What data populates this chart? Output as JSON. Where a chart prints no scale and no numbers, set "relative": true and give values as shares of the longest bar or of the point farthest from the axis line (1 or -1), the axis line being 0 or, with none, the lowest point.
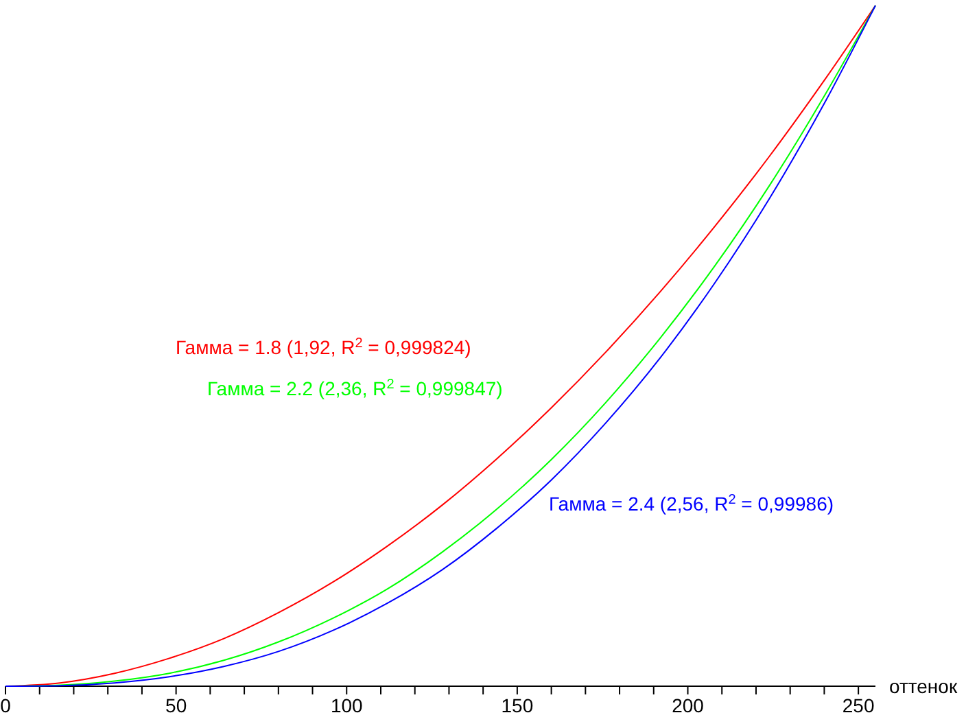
{
  "chart_data": {
    "type": "line",
    "relative": true,
    "xlabel": "оттенок",
    "xlim": [
      0,
      255
    ],
    "xticks": [
      0,
      {
        "value": 10,
        "label": null
      },
      {
        "value": 20,
        "label": null
      },
      {
        "value": 30,
        "label": null
      },
      {
        "value": 40,
        "label": null
      },
      50,
      {
        "value": 60,
        "label": null
      },
      {
        "value": 70,
        "label": null
      },
      {
        "value": 80,
        "label": null
      },
      {
        "value": 90,
        "label": null
      },
      100,
      {
        "value": 110,
        "label": null
      },
      {
        "value": 120,
        "label": null
      },
      {
        "value": 130,
        "label": null
      },
      {
        "value": 140,
        "label": null
      },
      150,
      {
        "value": 160,
        "label": null
      },
      {
        "value": 170,
        "label": null
      },
      {
        "value": 180,
        "label": null
      },
      {
        "value": 190,
        "label": null
      },
      200,
      {
        "value": 210,
        "label": null
      },
      {
        "value": 220,
        "label": null
      },
      {
        "value": 230,
        "label": null
      },
      {
        "value": 240,
        "label": null
      },
      250
    ],
    "x": [
      0,
      16,
      32,
      48,
      64,
      80,
      96,
      112,
      128,
      144,
      160,
      176,
      192,
      208,
      224,
      240,
      255
    ],
    "series": [
      {
        "color": "#ff0000",
        "values": [
          0,
          0.0049,
          0.019,
          0.041,
          0.07,
          0.108,
          0.153,
          0.206,
          0.266,
          0.334,
          0.409,
          0.491,
          0.58,
          0.676,
          0.779,
          0.89,
          1
        ]
      },
      {
        "color": "#00ff00",
        "values": [
          0,
          0.0015,
          0.0075,
          0.019,
          0.038,
          0.065,
          0.1,
          0.143,
          0.197,
          0.26,
          0.333,
          0.417,
          0.512,
          0.618,
          0.736,
          0.867,
          1
        ]
      },
      {
        "color": "#0000ff",
        "values": [
          0,
          0.0008,
          0.0049,
          0.0139,
          0.029,
          0.051,
          0.082,
          0.122,
          0.171,
          0.232,
          0.303,
          0.387,
          0.483,
          0.593,
          0.717,
          0.856,
          1
        ]
      }
    ],
    "annotations": [
      "Гамма = 1.8 (1,92, R$^{2}$ = 0,999824)",
      "Гамма = 2.2 (2,36, R$^{2}$ = 0,999847)",
      "Гамма = 2.4 (2,56, R$^{2}$ = 0,99986)"
    ],
    "grid": false,
    "marker": "none",
    "line_style": "solid"
  }
}
